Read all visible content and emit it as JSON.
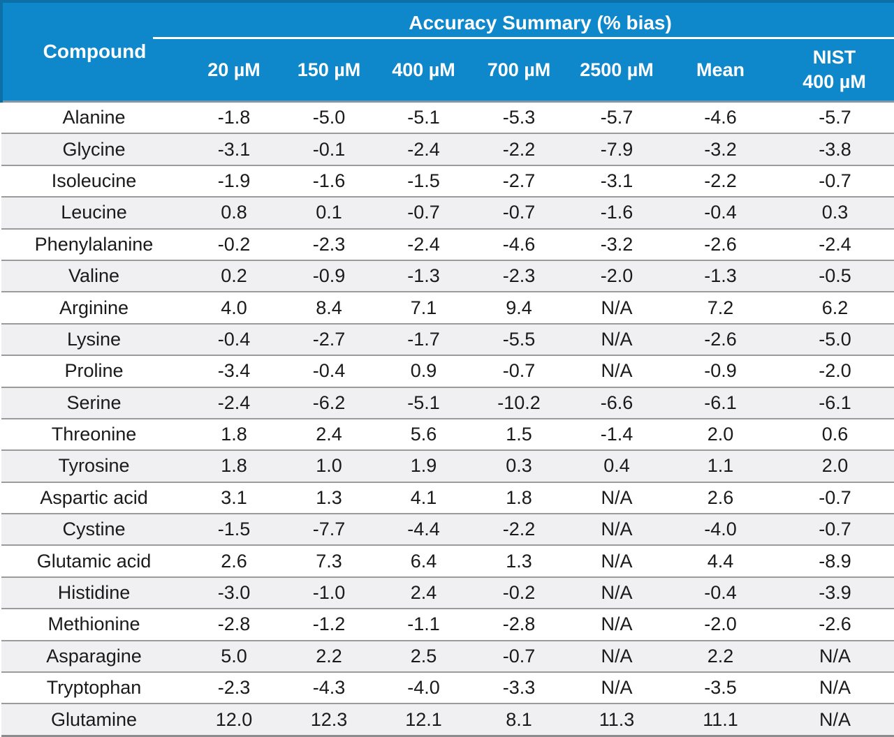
{
  "table": {
    "title": "Accuracy Summary (% bias)",
    "compound_header": "Compound",
    "sub_headers": [
      "20 µM",
      "150 µM",
      "400 µM",
      "700 µM",
      "2500 µM",
      "Mean",
      "NIST\n400 µM"
    ],
    "rows": [
      {
        "compound": "Alanine",
        "values": [
          "-1.8",
          "-5.0",
          "-5.1",
          "-5.3",
          "-5.7",
          "-4.6",
          "-5.7"
        ]
      },
      {
        "compound": "Glycine",
        "values": [
          "-3.1",
          "-0.1",
          "-2.4",
          "-2.2",
          "-7.9",
          "-3.2",
          "-3.8"
        ]
      },
      {
        "compound": "Isoleucine",
        "values": [
          "-1.9",
          "-1.6",
          "-1.5",
          "-2.7",
          "-3.1",
          "-2.2",
          "-0.7"
        ]
      },
      {
        "compound": "Leucine",
        "values": [
          "0.8",
          "0.1",
          "-0.7",
          "-0.7",
          "-1.6",
          "-0.4",
          "0.3"
        ]
      },
      {
        "compound": "Phenylalanine",
        "values": [
          "-0.2",
          "-2.3",
          "-2.4",
          "-4.6",
          "-3.2",
          "-2.6",
          "-2.4"
        ]
      },
      {
        "compound": "Valine",
        "values": [
          "0.2",
          "-0.9",
          "-1.3",
          "-2.3",
          "-2.0",
          "-1.3",
          "-0.5"
        ]
      },
      {
        "compound": "Arginine",
        "values": [
          "4.0",
          "8.4",
          "7.1",
          "9.4",
          "N/A",
          "7.2",
          "6.2"
        ]
      },
      {
        "compound": "Lysine",
        "values": [
          "-0.4",
          "-2.7",
          "-1.7",
          "-5.5",
          "N/A",
          "-2.6",
          "-5.0"
        ]
      },
      {
        "compound": "Proline",
        "values": [
          "-3.4",
          "-0.4",
          "0.9",
          "-0.7",
          "N/A",
          "-0.9",
          "-2.0"
        ]
      },
      {
        "compound": "Serine",
        "values": [
          "-2.4",
          "-6.2",
          "-5.1",
          "-10.2",
          "-6.6",
          "-6.1",
          "-6.1"
        ]
      },
      {
        "compound": "Threonine",
        "values": [
          "1.8",
          "2.4",
          "5.6",
          "1.5",
          "-1.4",
          "2.0",
          "0.6"
        ]
      },
      {
        "compound": "Tyrosine",
        "values": [
          "1.8",
          "1.0",
          "1.9",
          "0.3",
          "0.4",
          "1.1",
          "2.0"
        ]
      },
      {
        "compound": "Aspartic acid",
        "values": [
          "3.1",
          "1.3",
          "4.1",
          "1.8",
          "N/A",
          "2.6",
          "-0.7"
        ]
      },
      {
        "compound": "Cystine",
        "values": [
          "-1.5",
          "-7.7",
          "-4.4",
          "-2.2",
          "N/A",
          "-4.0",
          "-0.7"
        ]
      },
      {
        "compound": "Glutamic acid",
        "values": [
          "2.6",
          "7.3",
          "6.4",
          "1.3",
          "N/A",
          "4.4",
          "-8.9"
        ]
      },
      {
        "compound": "Histidine",
        "values": [
          "-3.0",
          "-1.0",
          "2.4",
          "-0.2",
          "N/A",
          "-0.4",
          "-3.9"
        ]
      },
      {
        "compound": "Methionine",
        "values": [
          "-2.8",
          "-1.2",
          "-1.1",
          "-2.8",
          "N/A",
          "-2.0",
          "-2.6"
        ]
      },
      {
        "compound": "Asparagine",
        "values": [
          "5.0",
          "2.2",
          "2.5",
          "-0.7",
          "N/A",
          "2.2",
          "N/A"
        ]
      },
      {
        "compound": "Tryptophan",
        "values": [
          "-2.3",
          "-4.3",
          "-4.0",
          "-3.3",
          "N/A",
          "-3.5",
          "N/A"
        ]
      },
      {
        "compound": "Glutamine",
        "values": [
          "12.0",
          "12.3",
          "12.1",
          "8.1",
          "11.3",
          "11.1",
          "N/A"
        ]
      }
    ]
  },
  "colors": {
    "header_bg": "#0e87cb",
    "header_outline": "#0c6fa5",
    "header_text": "#ffffff",
    "header_body_divider": "#7e97a9",
    "row_alt_bg": "#f0f0f2",
    "row_divider": "#9b9b9b",
    "table_bottom_border": "#8c8c8c",
    "body_text": "#1a1a1a"
  },
  "chart_data": {
    "type": "table",
    "title": "Accuracy Summary (% bias)",
    "columns": [
      "Compound",
      "20 µM",
      "150 µM",
      "400 µM",
      "700 µM",
      "2500 µM",
      "Mean",
      "NIST 400 µM"
    ],
    "rows": [
      [
        "Alanine",
        -1.8,
        -5.0,
        -5.1,
        -5.3,
        -5.7,
        -4.6,
        -5.7
      ],
      [
        "Glycine",
        -3.1,
        -0.1,
        -2.4,
        -2.2,
        -7.9,
        -3.2,
        -3.8
      ],
      [
        "Isoleucine",
        -1.9,
        -1.6,
        -1.5,
        -2.7,
        -3.1,
        -2.2,
        -0.7
      ],
      [
        "Leucine",
        0.8,
        0.1,
        -0.7,
        -0.7,
        -1.6,
        -0.4,
        0.3
      ],
      [
        "Phenylalanine",
        -0.2,
        -2.3,
        -2.4,
        -4.6,
        -3.2,
        -2.6,
        -2.4
      ],
      [
        "Valine",
        0.2,
        -0.9,
        -1.3,
        -2.3,
        -2.0,
        -1.3,
        -0.5
      ],
      [
        "Arginine",
        4.0,
        8.4,
        7.1,
        9.4,
        "N/A",
        7.2,
        6.2
      ],
      [
        "Lysine",
        -0.4,
        -2.7,
        -1.7,
        -5.5,
        "N/A",
        -2.6,
        -5.0
      ],
      [
        "Proline",
        -3.4,
        -0.4,
        0.9,
        -0.7,
        "N/A",
        -0.9,
        -2.0
      ],
      [
        "Serine",
        -2.4,
        -6.2,
        -5.1,
        -10.2,
        -6.6,
        -6.1,
        -6.1
      ],
      [
        "Threonine",
        1.8,
        2.4,
        5.6,
        1.5,
        -1.4,
        2.0,
        0.6
      ],
      [
        "Tyrosine",
        1.8,
        1.0,
        1.9,
        0.3,
        0.4,
        1.1,
        2.0
      ],
      [
        "Aspartic acid",
        3.1,
        1.3,
        4.1,
        1.8,
        "N/A",
        2.6,
        -0.7
      ],
      [
        "Cystine",
        -1.5,
        -7.7,
        -4.4,
        -2.2,
        "N/A",
        -4.0,
        -0.7
      ],
      [
        "Glutamic acid",
        2.6,
        7.3,
        6.4,
        1.3,
        "N/A",
        4.4,
        -8.9
      ],
      [
        "Histidine",
        -3.0,
        -1.0,
        2.4,
        -0.2,
        "N/A",
        -0.4,
        -3.9
      ],
      [
        "Methionine",
        -2.8,
        -1.2,
        -1.1,
        -2.8,
        "N/A",
        -2.0,
        -2.6
      ],
      [
        "Asparagine",
        5.0,
        2.2,
        2.5,
        -0.7,
        "N/A",
        2.2,
        "N/A"
      ],
      [
        "Tryptophan",
        -2.3,
        -4.3,
        -4.0,
        -3.3,
        "N/A",
        -3.5,
        "N/A"
      ],
      [
        "Glutamine",
        12.0,
        12.3,
        12.1,
        8.1,
        11.3,
        11.1,
        "N/A"
      ]
    ]
  }
}
